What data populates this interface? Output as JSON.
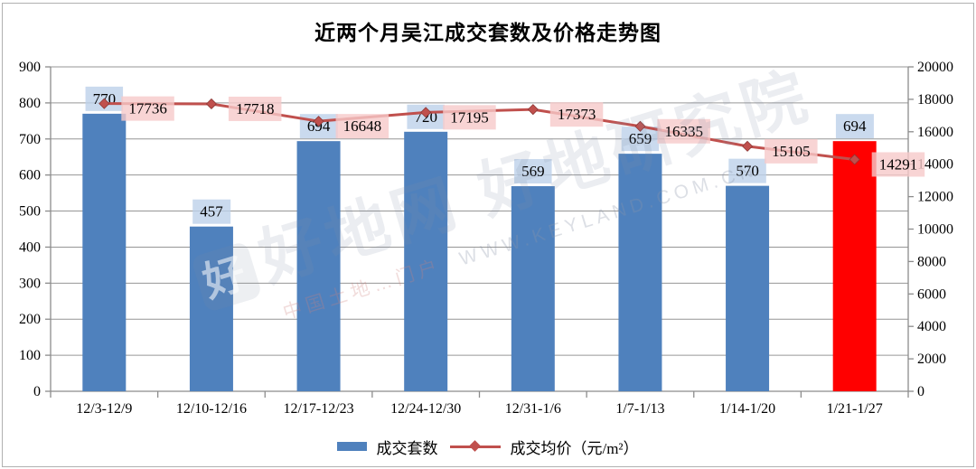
{
  "chart_data": {
    "type": "bar",
    "title": "近两个月吴江成交套数及价格走势图",
    "categories": [
      "12/3-12/9",
      "12/10-12/16",
      "12/17-12/23",
      "12/24-12/30",
      "12/31-1/6",
      "1/7-1/13",
      "1/14-1/20",
      "1/21-1/27"
    ],
    "series": [
      {
        "name": "成交套数",
        "type": "bar",
        "axis": "left",
        "values": [
          770,
          457,
          694,
          720,
          569,
          659,
          570,
          694
        ],
        "color": "#4f81bd",
        "highlight_index": 7,
        "highlight_color": "#ff0000",
        "label_bg": "#bdd1ea"
      },
      {
        "name": "成交均价（元/m²）",
        "type": "line",
        "axis": "right",
        "values": [
          17736,
          17718,
          16648,
          17195,
          17373,
          16335,
          15105,
          14291
        ],
        "color": "#c0504d",
        "marker": "diamond",
        "label_bg": "#f6c9c9"
      }
    ],
    "left_axis": {
      "min": 0,
      "max": 900,
      "step": 100
    },
    "right_axis": {
      "min": 0,
      "max": 20000,
      "step": 2000
    },
    "grid": true,
    "legend_position": "bottom",
    "style": {
      "grid_color": "#969696",
      "axis_color": "#8c8c8c",
      "text_color": "#000000",
      "label_font_size": 17,
      "tick_font_size": 16
    }
  },
  "watermark": {
    "logo_char": "好",
    "main": "好地网 好地研究院",
    "sub_cn": "中国土地…门户",
    "url": "WWW.KEYLAND.COM.CN"
  }
}
